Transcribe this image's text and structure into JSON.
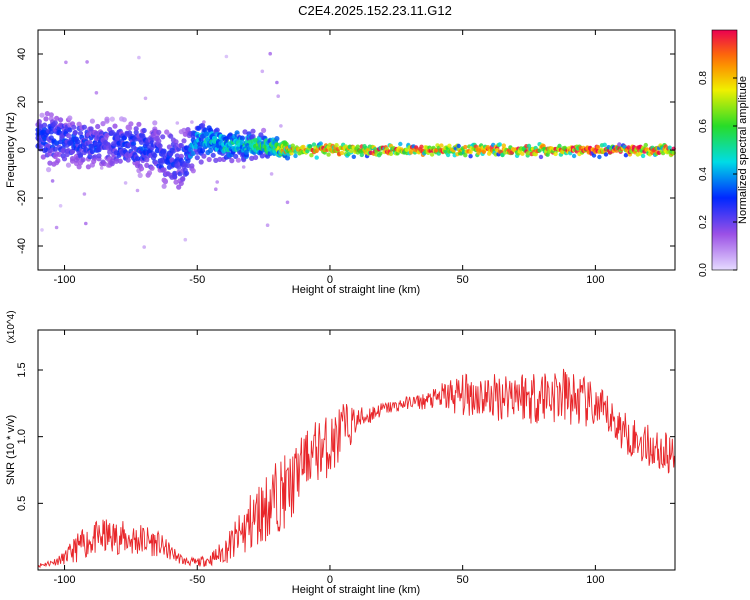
{
  "title": "C2E4.2025.152.23.11.G12",
  "colors": {
    "snr_line": "#e8262a",
    "axis": "#000000"
  },
  "chart_data": [
    {
      "type": "heatmap",
      "xlabel": "Height of straight line (km)",
      "ylabel": "Frequency (Hz)",
      "xlim": [
        -110,
        130
      ],
      "ylim": [
        -50,
        50
      ],
      "xticks": [
        -100,
        -50,
        0,
        50,
        100
      ],
      "yticks": [
        -40,
        -20,
        0,
        20,
        40
      ],
      "colorbar": {
        "label": "Normalized spectral amplitude",
        "range": [
          0,
          1
        ],
        "ticks": [
          "0.0",
          "0.2",
          "0.4",
          "0.6",
          "0.8"
        ],
        "colormap": "rainbow"
      },
      "profile": {
        "x": [
          -110,
          -100,
          -90,
          -80,
          -70,
          -62,
          -56,
          -50,
          -40,
          -30,
          -20,
          -15,
          0,
          20,
          50,
          80,
          110,
          130
        ],
        "center_freq": [
          5,
          4,
          2,
          2,
          1,
          -3,
          -5,
          4,
          2,
          2,
          1,
          0,
          0,
          0,
          0,
          0,
          0,
          0
        ],
        "spread_hz": [
          8,
          8,
          7,
          7,
          8,
          9,
          9,
          6,
          5,
          4,
          3,
          2,
          2,
          1.5,
          1.5,
          1.5,
          1.5,
          1.5
        ],
        "peak_amplitude": [
          0.3,
          0.32,
          0.3,
          0.3,
          0.32,
          0.3,
          0.3,
          0.45,
          0.5,
          0.55,
          0.7,
          0.9,
          0.95,
          1.0,
          1.0,
          1.0,
          1.0,
          1.0
        ]
      }
    },
    {
      "type": "line",
      "xlabel": "Height of straight line (km)",
      "ylabel": "SNR (10 * v/v)",
      "y_multiplier": "(x10^4)",
      "xlim": [
        -110,
        130
      ],
      "ylim": [
        0,
        1.8
      ],
      "xticks": [
        -100,
        -50,
        0,
        50,
        100
      ],
      "yticks": [
        "0.5",
        "1.0",
        "1.5"
      ],
      "series": [
        {
          "x": [
            -110,
            -105,
            -100,
            -95,
            -90,
            -85,
            -80,
            -75,
            -70,
            -65,
            -60,
            -55,
            -50,
            -45,
            -40,
            -35,
            -30,
            -25,
            -20,
            -15,
            -10,
            -5,
            0,
            5,
            10,
            15,
            20,
            25,
            30,
            35,
            40,
            45,
            50,
            55,
            60,
            65,
            70,
            75,
            80,
            85,
            90,
            95,
            100,
            105,
            110,
            115,
            120,
            125,
            130
          ],
          "values": [
            0.03,
            0.05,
            0.08,
            0.15,
            0.2,
            0.22,
            0.22,
            0.2,
            0.2,
            0.18,
            0.12,
            0.06,
            0.05,
            0.07,
            0.12,
            0.2,
            0.3,
            0.4,
            0.5,
            0.55,
            0.78,
            0.85,
            0.88,
            1.0,
            1.1,
            1.15,
            1.2,
            1.22,
            1.25,
            1.25,
            1.27,
            1.28,
            1.28,
            1.28,
            1.26,
            1.27,
            1.3,
            1.25,
            1.27,
            1.27,
            1.25,
            1.22,
            1.18,
            1.12,
            1.02,
            0.95,
            0.9,
            0.85,
            0.82
          ],
          "noise": [
            0.02,
            0.03,
            0.06,
            0.14,
            0.15,
            0.18,
            0.16,
            0.17,
            0.16,
            0.12,
            0.08,
            0.04,
            0.04,
            0.06,
            0.12,
            0.2,
            0.3,
            0.32,
            0.35,
            0.35,
            0.25,
            0.3,
            0.3,
            0.28,
            0.12,
            0.1,
            0.06,
            0.06,
            0.06,
            0.08,
            0.1,
            0.18,
            0.2,
            0.22,
            0.22,
            0.24,
            0.24,
            0.26,
            0.28,
            0.28,
            0.28,
            0.25,
            0.22,
            0.2,
            0.2,
            0.2,
            0.2,
            0.2,
            0.2
          ]
        }
      ]
    }
  ]
}
